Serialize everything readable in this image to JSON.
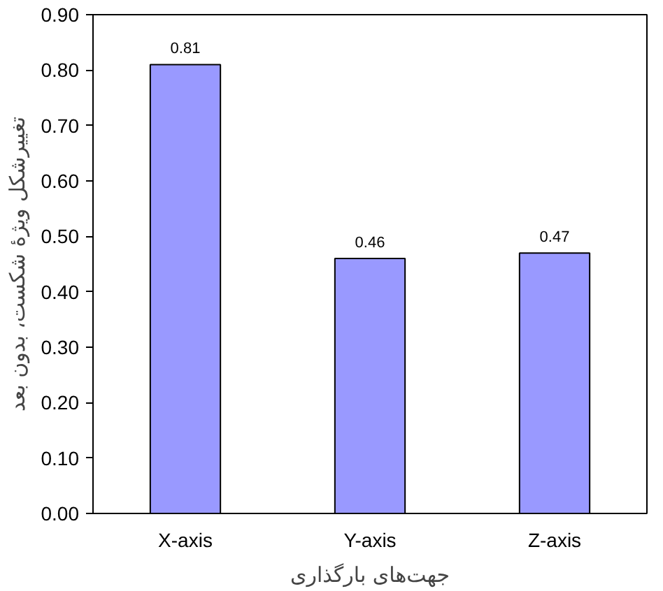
{
  "chart_data": {
    "type": "bar",
    "xlabel": "جهت‌های بارگذاری",
    "ylabel": "تغییرشکل ویژهٔ شکست، بدون بعد",
    "categories": [
      "X-axis",
      "Y-axis",
      "Z-axis"
    ],
    "values": [
      0.81,
      0.46,
      0.47
    ],
    "color": "#9999ff",
    "data_labels": true,
    "ylim": [
      0,
      0.9
    ],
    "yticks": [
      {
        "value": 0,
        "label": "0.00"
      },
      {
        "value": 0.1,
        "label": "0.10"
      },
      {
        "value": 0.2,
        "label": "0.20"
      },
      {
        "value": 0.3,
        "label": "0.30"
      },
      {
        "value": 0.4,
        "label": "0.40"
      },
      {
        "value": 0.5,
        "label": "0.50"
      },
      {
        "value": 0.6,
        "label": "0.60"
      },
      {
        "value": 0.7,
        "label": "0.70"
      },
      {
        "value": 0.8,
        "label": "0.80"
      },
      {
        "value": 0.9,
        "label": "0.90"
      }
    ],
    "grid": false
  }
}
